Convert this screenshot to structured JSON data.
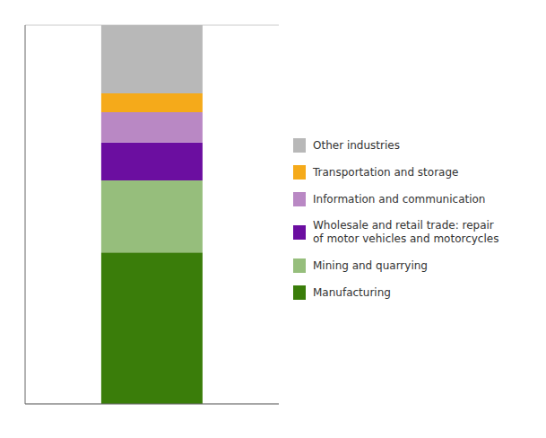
{
  "chart_data": {
    "type": "bar",
    "stacked": true,
    "categories": [
      null
    ],
    "series": [
      {
        "name": "Manufacturing",
        "color": "#3a7d0a",
        "values": [
          40
        ]
      },
      {
        "name": "Mining and quarrying",
        "color": "#96be7c",
        "values": [
          19
        ]
      },
      {
        "name": "Wholesale and retail trade: repair\nof motor vehicles and motorcycles",
        "color": "#6b0ea0",
        "values": [
          10
        ]
      },
      {
        "name": "Information and communication",
        "color": "#b988c4",
        "values": [
          8
        ]
      },
      {
        "name": "Transportation and storage",
        "color": "#f5aa1a",
        "values": [
          5
        ]
      },
      {
        "name": "Other industries",
        "color": "#b8b8b8",
        "values": [
          18
        ]
      }
    ],
    "ylim": [
      0,
      100
    ],
    "yticks": [
      0,
      10,
      20,
      30,
      40,
      50,
      60,
      70,
      80,
      90,
      100
    ],
    "grid": true,
    "tick_labels": false,
    "legend": "right"
  }
}
